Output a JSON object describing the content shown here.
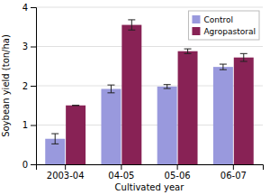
{
  "chart_data": {
    "type": "bar",
    "categories": [
      "2003-04",
      "04-05",
      "05-06",
      "06-07"
    ],
    "series": [
      {
        "name": "Control",
        "color": "#9999dd",
        "values": [
          0.65,
          1.92,
          1.98,
          2.48
        ],
        "errors": [
          0.13,
          0.1,
          0.05,
          0.07
        ]
      },
      {
        "name": "Agropastoral",
        "color": "#882255",
        "values": [
          1.5,
          3.55,
          2.88,
          2.72
        ],
        "errors": [
          0.0,
          0.13,
          0.06,
          0.1
        ]
      }
    ],
    "xlabel": "Cultivated year",
    "ylabel": "Soybean yield (ton/ha)",
    "ylim": [
      0,
      4
    ],
    "yticks": [
      0,
      1,
      2,
      3,
      4
    ],
    "grid": true,
    "legend": "top-right"
  }
}
